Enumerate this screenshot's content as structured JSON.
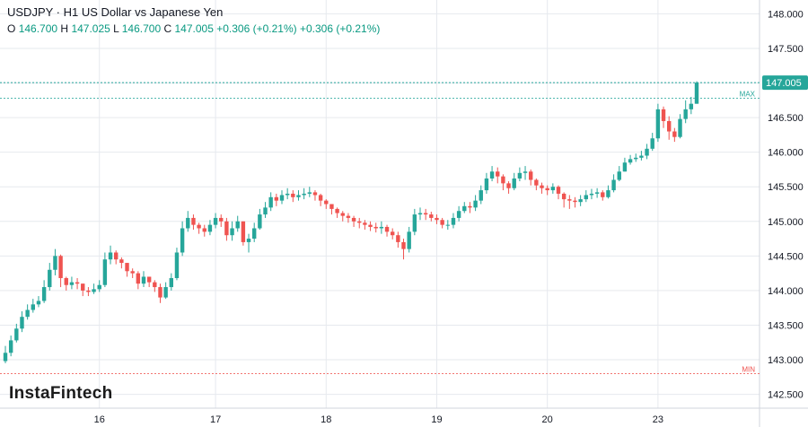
{
  "header": {
    "line1": "USDJPY · H1 US Dollar vs Japanese Yen",
    "ohlc": {
      "o_label": "O",
      "o": "146.700",
      "h_label": "H",
      "h": "147.025",
      "l_label": "L",
      "l": "146.700",
      "c_label": "C",
      "c": "147.005",
      "chg1": "+0.306 (+0.21%)",
      "chg2": "+0.306 (+0.21%)"
    }
  },
  "logo": "InstaFintech",
  "colors": {
    "up": "#26a69a",
    "down": "#ef5350",
    "price_line": "#26a69a",
    "min_line": "#ef5350",
    "grid": "#e6e9ee",
    "axis_text": "#131722",
    "background": "#ffffff"
  },
  "chart_data": {
    "type": "candlestick",
    "symbol": "USDJPY",
    "timeframe": "H1",
    "ylim": [
      142.3,
      148.2
    ],
    "y_ticks": [
      "142.500",
      "143.000",
      "143.500",
      "144.000",
      "144.500",
      "145.000",
      "145.500",
      "146.000",
      "146.500",
      "147.000",
      "147.500",
      "148.000"
    ],
    "x_ticks": [
      "16",
      "17",
      "18",
      "19",
      "20",
      "23"
    ],
    "x_tick_bar_index": [
      17,
      38,
      58,
      78,
      98,
      118
    ],
    "grid": "horizontal and vertical",
    "last_price_label": "147.005",
    "last_price": 147.005,
    "max_label": "MAX",
    "max": 146.78,
    "min_label": "MIN",
    "min": 142.8,
    "closes": [
      143.1,
      143.28,
      143.45,
      143.62,
      143.72,
      143.8,
      143.85,
      144.05,
      144.3,
      144.5,
      144.18,
      144.08,
      144.12,
      144.1,
      144.0,
      143.98,
      144.02,
      144.08,
      144.45,
      144.55,
      144.45,
      144.4,
      144.28,
      144.25,
      144.1,
      144.2,
      144.12,
      144.05,
      143.9,
      144.05,
      144.18,
      144.55,
      144.9,
      145.05,
      144.95,
      144.9,
      144.85,
      144.95,
      145.05,
      145.0,
      144.8,
      144.9,
      145.0,
      144.7,
      144.75,
      144.9,
      145.1,
      145.2,
      145.35,
      145.3,
      145.38,
      145.4,
      145.35,
      145.38,
      145.4,
      145.42,
      145.38,
      145.3,
      145.25,
      145.18,
      145.12,
      145.08,
      145.05,
      145.0,
      144.98,
      144.95,
      144.92,
      144.9,
      144.92,
      144.85,
      144.8,
      144.7,
      144.6,
      144.85,
      145.1,
      145.12,
      145.1,
      145.05,
      145.02,
      144.95,
      144.95,
      145.05,
      145.15,
      145.22,
      145.2,
      145.3,
      145.45,
      145.62,
      145.72,
      145.65,
      145.55,
      145.48,
      145.62,
      145.7,
      145.72,
      145.6,
      145.52,
      145.48,
      145.45,
      145.5,
      145.4,
      145.32,
      145.3,
      145.28,
      145.32,
      145.38,
      145.4,
      145.42,
      145.35,
      145.45,
      145.6,
      145.72,
      145.85,
      145.9,
      145.92,
      145.95,
      146.05,
      146.2,
      146.62,
      146.45,
      146.3,
      146.22,
      146.48,
      146.62,
      146.7,
      147.005
    ],
    "highs": [
      143.2,
      143.35,
      143.52,
      143.7,
      143.8,
      143.88,
      143.92,
      144.15,
      144.4,
      144.6,
      144.52,
      144.2,
      144.2,
      144.18,
      144.1,
      144.05,
      144.1,
      144.15,
      144.55,
      144.65,
      144.58,
      144.48,
      144.4,
      144.32,
      144.28,
      144.28,
      144.2,
      144.15,
      144.1,
      144.12,
      144.25,
      144.62,
      145.0,
      145.15,
      145.1,
      144.98,
      144.95,
      145.02,
      145.12,
      145.1,
      145.05,
      145.0,
      145.08,
      144.95,
      144.82,
      144.98,
      145.18,
      145.28,
      145.42,
      145.4,
      145.45,
      145.48,
      145.45,
      145.45,
      145.48,
      145.5,
      145.45,
      145.4,
      145.32,
      145.25,
      145.2,
      145.15,
      145.12,
      145.08,
      145.05,
      145.02,
      145.0,
      144.98,
      145.0,
      144.95,
      144.9,
      144.85,
      144.75,
      144.92,
      145.18,
      145.2,
      145.18,
      145.14,
      145.1,
      145.05,
      145.02,
      145.12,
      145.22,
      145.28,
      145.28,
      145.38,
      145.52,
      145.7,
      145.8,
      145.78,
      145.68,
      145.58,
      145.7,
      145.78,
      145.8,
      145.75,
      145.62,
      145.56,
      145.52,
      145.55,
      145.52,
      145.42,
      145.38,
      145.35,
      145.38,
      145.45,
      145.47,
      145.48,
      145.45,
      145.52,
      145.68,
      145.8,
      145.92,
      145.96,
      145.98,
      146.02,
      146.12,
      146.28,
      146.7,
      146.66,
      146.52,
      146.35,
      146.55,
      146.75,
      146.8,
      147.025
    ],
    "lows": [
      142.95,
      143.05,
      143.25,
      143.4,
      143.58,
      143.68,
      143.76,
      143.82,
      144.0,
      144.22,
      144.05,
      144.0,
      144.02,
      144.02,
      143.92,
      143.92,
      143.95,
      143.98,
      144.05,
      144.38,
      144.38,
      144.32,
      144.2,
      144.18,
      144.02,
      144.05,
      144.05,
      143.98,
      143.82,
      143.88,
      144.0,
      144.15,
      144.5,
      144.85,
      144.88,
      144.82,
      144.78,
      144.8,
      144.9,
      144.92,
      144.72,
      144.72,
      144.85,
      144.65,
      144.55,
      144.7,
      144.88,
      145.05,
      145.15,
      145.22,
      145.25,
      145.32,
      145.28,
      145.3,
      145.32,
      145.35,
      145.3,
      145.22,
      145.18,
      145.1,
      145.05,
      145.0,
      144.98,
      144.92,
      144.9,
      144.88,
      144.86,
      144.84,
      144.82,
      144.78,
      144.74,
      144.62,
      144.45,
      144.55,
      144.8,
      145.02,
      145.02,
      145.0,
      144.96,
      144.9,
      144.88,
      144.9,
      145.0,
      145.12,
      145.12,
      145.15,
      145.25,
      145.4,
      145.58,
      145.55,
      145.45,
      145.4,
      145.45,
      145.58,
      145.6,
      145.52,
      145.45,
      145.4,
      145.38,
      145.4,
      145.32,
      145.2,
      145.18,
      145.2,
      145.22,
      145.28,
      145.32,
      145.34,
      145.3,
      145.33,
      145.42,
      145.58,
      145.72,
      145.82,
      145.86,
      145.88,
      145.9,
      146.02,
      146.15,
      146.35,
      146.18,
      146.15,
      146.2,
      146.42,
      146.55,
      146.7
    ]
  }
}
